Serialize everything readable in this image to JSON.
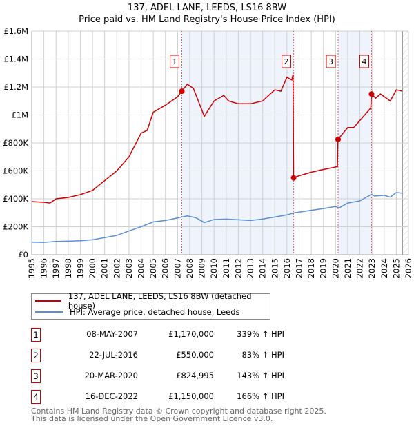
{
  "title": "137, ADEL LANE, LEEDS, LS16 8BW",
  "subtitle": "Price paid vs. HM Land Registry's House Price Index (HPI)",
  "chart_data": {
    "type": "line",
    "title": "137, ADEL LANE, LEEDS, LS16 8BW",
    "xlim": [
      1995,
      2026
    ],
    "ylim": [
      0,
      1600000
    ],
    "x_ticks": [
      "1995",
      "1996",
      "1997",
      "1998",
      "1999",
      "2000",
      "2001",
      "2002",
      "2003",
      "2004",
      "2005",
      "2006",
      "2007",
      "2008",
      "2009",
      "2010",
      "2011",
      "2012",
      "2013",
      "2014",
      "2015",
      "2016",
      "2017",
      "2018",
      "2019",
      "2020",
      "2021",
      "2022",
      "2023",
      "2024",
      "2025",
      "2026"
    ],
    "y_ticks": [
      {
        "v": 0,
        "l": "£0"
      },
      {
        "v": 200000,
        "l": "£200K"
      },
      {
        "v": 400000,
        "l": "£400K"
      },
      {
        "v": 600000,
        "l": "£600K"
      },
      {
        "v": 800000,
        "l": "£800K"
      },
      {
        "v": 1000000,
        "l": "£1M"
      },
      {
        "v": 1200000,
        "l": "£1.2M"
      },
      {
        "v": 1400000,
        "l": "£1.4M"
      },
      {
        "v": 1600000,
        "l": "£1.6M"
      }
    ],
    "series": [
      {
        "name": "137, ADEL LANE, LEEDS, LS16 8BW (detached house)",
        "color": "#cc0000",
        "points": [
          [
            1995,
            380000
          ],
          [
            1996,
            375000
          ],
          [
            1996.5,
            370000
          ],
          [
            1997,
            400000
          ],
          [
            1998,
            410000
          ],
          [
            1999,
            430000
          ],
          [
            2000,
            460000
          ],
          [
            2001,
            530000
          ],
          [
            2002,
            600000
          ],
          [
            2003,
            700000
          ],
          [
            2004,
            870000
          ],
          [
            2004.5,
            890000
          ],
          [
            2005,
            1020000
          ],
          [
            2006,
            1070000
          ],
          [
            2007,
            1130000
          ],
          [
            2007.35,
            1170000
          ],
          [
            2007.8,
            1220000
          ],
          [
            2008.3,
            1190000
          ],
          [
            2009.2,
            990000
          ],
          [
            2010,
            1100000
          ],
          [
            2010.8,
            1140000
          ],
          [
            2011.2,
            1100000
          ],
          [
            2012,
            1080000
          ],
          [
            2013,
            1080000
          ],
          [
            2014,
            1100000
          ],
          [
            2015,
            1180000
          ],
          [
            2015.5,
            1170000
          ],
          [
            2016,
            1270000
          ],
          [
            2016.4,
            1250000
          ],
          [
            2016.5,
            1290000
          ],
          [
            2016.55,
            550000
          ],
          [
            2017,
            565000
          ],
          [
            2018,
            590000
          ],
          [
            2019,
            610000
          ],
          [
            2020.15,
            630000
          ],
          [
            2020.2,
            825000
          ],
          [
            2021,
            910000
          ],
          [
            2021.5,
            910000
          ],
          [
            2022,
            960000
          ],
          [
            2022.9,
            1050000
          ],
          [
            2022.96,
            1150000
          ],
          [
            2023.3,
            1120000
          ],
          [
            2023.7,
            1150000
          ],
          [
            2024.5,
            1100000
          ],
          [
            2025,
            1180000
          ],
          [
            2025.5,
            1170000
          ]
        ]
      },
      {
        "name": "HPI: Average price, detached house, Leeds",
        "color": "#5b8fd4",
        "points": [
          [
            1995,
            90000
          ],
          [
            1996,
            88000
          ],
          [
            1997,
            95000
          ],
          [
            1998,
            97000
          ],
          [
            1999,
            100000
          ],
          [
            2000,
            107000
          ],
          [
            2001,
            122000
          ],
          [
            2002,
            138000
          ],
          [
            2003,
            170000
          ],
          [
            2004,
            200000
          ],
          [
            2005,
            235000
          ],
          [
            2006,
            245000
          ],
          [
            2007,
            263000
          ],
          [
            2007.8,
            278000
          ],
          [
            2008.5,
            265000
          ],
          [
            2009.2,
            230000
          ],
          [
            2010,
            252000
          ],
          [
            2011,
            255000
          ],
          [
            2012,
            250000
          ],
          [
            2013,
            245000
          ],
          [
            2014,
            255000
          ],
          [
            2015,
            270000
          ],
          [
            2016,
            285000
          ],
          [
            2016.6,
            300000
          ],
          [
            2017,
            305000
          ],
          [
            2018,
            318000
          ],
          [
            2019,
            330000
          ],
          [
            2020,
            345000
          ],
          [
            2020.3,
            335000
          ],
          [
            2021,
            370000
          ],
          [
            2022,
            385000
          ],
          [
            2022.96,
            432000
          ],
          [
            2023.2,
            420000
          ],
          [
            2024,
            425000
          ],
          [
            2024.5,
            412000
          ],
          [
            2025,
            445000
          ],
          [
            2025.5,
            440000
          ]
        ]
      }
    ],
    "sales": [
      {
        "n": "1",
        "x": 2007.35,
        "y": 1170000,
        "date": "08-MAY-2007",
        "price": "£1,170,000",
        "hpi": "339% ↑ HPI"
      },
      {
        "n": "2",
        "x": 2016.55,
        "y": 550000,
        "date": "22-JUL-2016",
        "price": "£550,000",
        "hpi": "83% ↑ HPI"
      },
      {
        "n": "3",
        "x": 2020.21,
        "y": 824995,
        "date": "20-MAR-2020",
        "price": "£824,995",
        "hpi": "143% ↑ HPI"
      },
      {
        "n": "4",
        "x": 2022.96,
        "y": 1150000,
        "date": "16-DEC-2022",
        "price": "£1,150,000",
        "hpi": "166% ↑ HPI"
      }
    ],
    "shaded": [
      [
        2007.35,
        2016.55
      ],
      [
        2020.21,
        2022.96
      ]
    ],
    "forecast_from": 2025.5
  },
  "footer": {
    "line1": "Contains HM Land Registry data © Crown copyright and database right 2025.",
    "line2": "This data is licensed under the Open Government Licence v3.0."
  }
}
